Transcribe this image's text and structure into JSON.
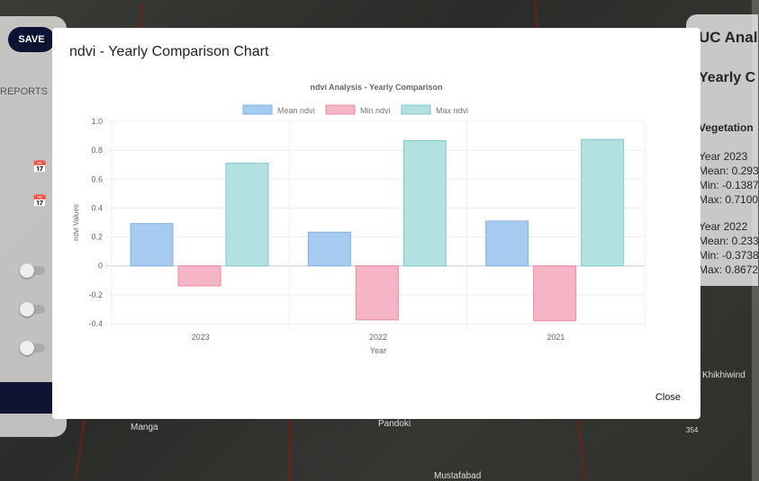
{
  "save_label": "SAVE",
  "reports_label": "REPORTS",
  "map_labels": [
    "Manga",
    "Pandoki",
    "Mustafabad",
    "Khikhiwind",
    "354"
  ],
  "right_panel": {
    "title": "UC Anal",
    "subtitle": "Yearly C",
    "section": "Vegetation",
    "lines": [
      "Year 2023",
      "Mean: 0.293",
      "Min: -0.1387",
      "Max: 0.7100",
      "Year 2022",
      "Mean: 0.233",
      "Min: -0.3738",
      "Max: 0.8672"
    ]
  },
  "modal": {
    "title": "ndvi - Yearly Comparison Chart",
    "close_label": "Close"
  },
  "colors": {
    "mean": "#a7cbf0",
    "min": "#f5b5c6",
    "max": "#b3e0e0",
    "mean_border": "#7fb0e0",
    "min_border": "#e98ca5",
    "max_border": "#7fc8c8"
  },
  "chart_data": {
    "type": "bar",
    "title": "ndvi Analysis - Yearly Comparison",
    "xlabel": "Year",
    "ylabel": "ndvi Values",
    "categories": [
      "2023",
      "2022",
      "2021"
    ],
    "ylim": [
      -0.4,
      1.0
    ],
    "yticks": [
      "1.0",
      "0.8",
      "0.6",
      "0.4",
      "0.2",
      "0",
      "-0.2",
      "-0.4"
    ],
    "grid": true,
    "legend": "top",
    "series": [
      {
        "name": "Mean ndvi",
        "values": [
          0.293,
          0.233,
          0.31
        ]
      },
      {
        "name": "Min ndvi",
        "values": [
          -0.1387,
          -0.3738,
          -0.38
        ]
      },
      {
        "name": "Max ndvi",
        "values": [
          0.71,
          0.8672,
          0.875
        ]
      }
    ]
  }
}
